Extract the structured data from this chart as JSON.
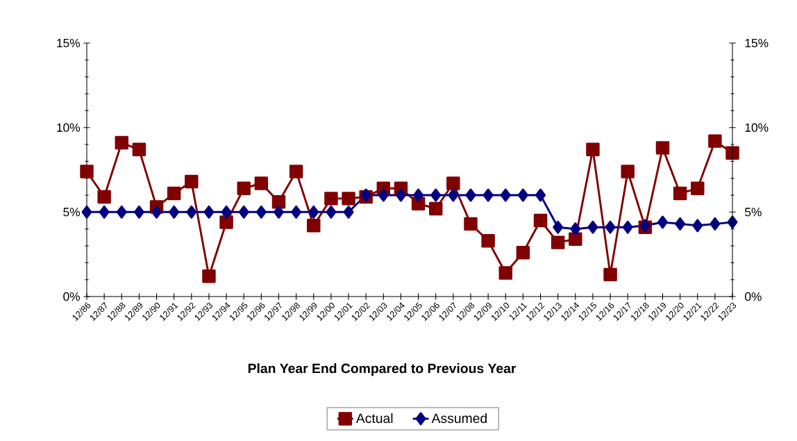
{
  "chart_data": {
    "type": "line",
    "xlabel": "Plan Year End Compared to Previous Year",
    "categories": [
      "12/86",
      "12/87",
      "12/88",
      "12/89",
      "12/90",
      "12/91",
      "12/92",
      "12/93",
      "12/94",
      "12/95",
      "12/96",
      "12/97",
      "12/98",
      "12/99",
      "12/00",
      "12/01",
      "12/02",
      "12/03",
      "12/04",
      "12/05",
      "12/06",
      "12/07",
      "12/08",
      "12/09",
      "12/10",
      "12/11",
      "12/12",
      "12/13",
      "12/14",
      "12/15",
      "12/16",
      "12/17",
      "12/18",
      "12/19",
      "12/20",
      "12/21",
      "12/22",
      "12/23"
    ],
    "series": [
      {
        "name": "Actual",
        "color": "#800000",
        "marker": "square",
        "values": [
          7.4,
          5.9,
          9.1,
          8.7,
          5.3,
          6.1,
          6.8,
          1.2,
          4.4,
          6.4,
          6.7,
          5.6,
          7.4,
          4.2,
          5.8,
          5.8,
          5.9,
          6.4,
          6.4,
          5.5,
          5.2,
          6.7,
          4.3,
          3.3,
          1.4,
          2.6,
          4.5,
          3.2,
          3.4,
          8.7,
          1.3,
          7.4,
          4.1,
          8.8,
          6.1,
          6.4,
          9.2,
          8.5
        ]
      },
      {
        "name": "Assumed",
        "color": "#000080",
        "marker": "diamond",
        "values": [
          5,
          5,
          5,
          5,
          5,
          5,
          5,
          5,
          5,
          5,
          5,
          5,
          5,
          5,
          5,
          5,
          6,
          6,
          6,
          6,
          6,
          6,
          6,
          6,
          6,
          6,
          6,
          4.1,
          4.0,
          4.1,
          4.1,
          4.1,
          4.2,
          4.4,
          4.3,
          4.2,
          4.3,
          4.4
        ]
      }
    ],
    "ylim": [
      0,
      15
    ],
    "yticks": [
      {
        "value": 0,
        "label": "0%"
      },
      {
        "value": 5,
        "label": "5%"
      },
      {
        "value": 10,
        "label": "10%"
      },
      {
        "value": 15,
        "label": "15%"
      }
    ],
    "y2lim": [
      0,
      15
    ],
    "y2ticks": [
      {
        "value": 0,
        "label": "0%"
      },
      {
        "value": 5,
        "label": "5%"
      },
      {
        "value": 10,
        "label": "10%"
      },
      {
        "value": 15,
        "label": "15%"
      }
    ],
    "legend": "bottom",
    "line_style": "solid",
    "grid": false
  }
}
